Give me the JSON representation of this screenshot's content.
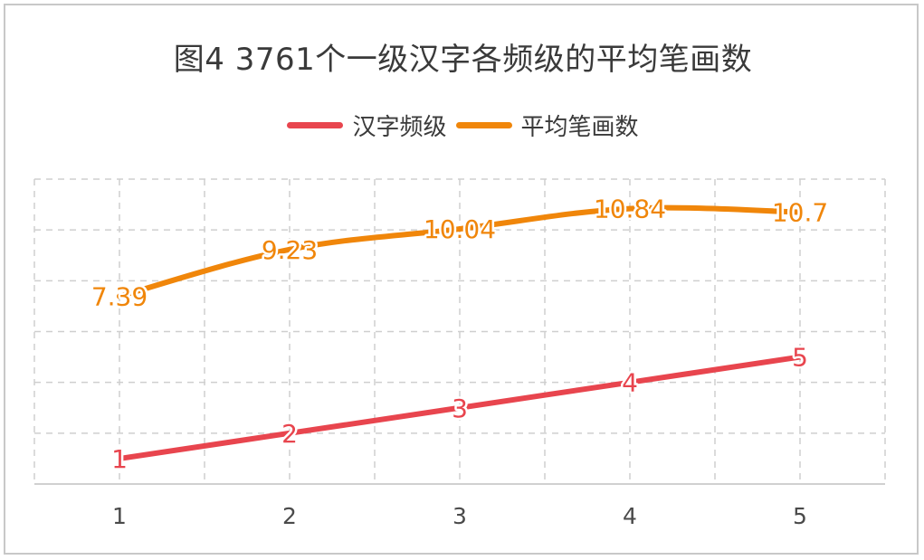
{
  "chart_data": {
    "type": "line",
    "title": "图4 3761个一级汉字各频级的平均笔画数",
    "xlabel": "",
    "ylabel": "",
    "categories": [
      "1",
      "2",
      "3",
      "4",
      "5"
    ],
    "series": [
      {
        "name": "汉字频级",
        "values": [
          1,
          2,
          3,
          4,
          5
        ],
        "labels": [
          "1",
          "2",
          "3",
          "4",
          "5"
        ],
        "color": "#e8454e"
      },
      {
        "name": "平均笔画数",
        "values": [
          7.39,
          9.23,
          10.04,
          10.84,
          10.7
        ],
        "labels": [
          "7.39",
          "9.23",
          "10.04",
          "10.84",
          "10.7"
        ],
        "color": "#f0860a"
      }
    ],
    "ylim": [
      0,
      12
    ],
    "grid": true,
    "legend_position": "top-center"
  }
}
